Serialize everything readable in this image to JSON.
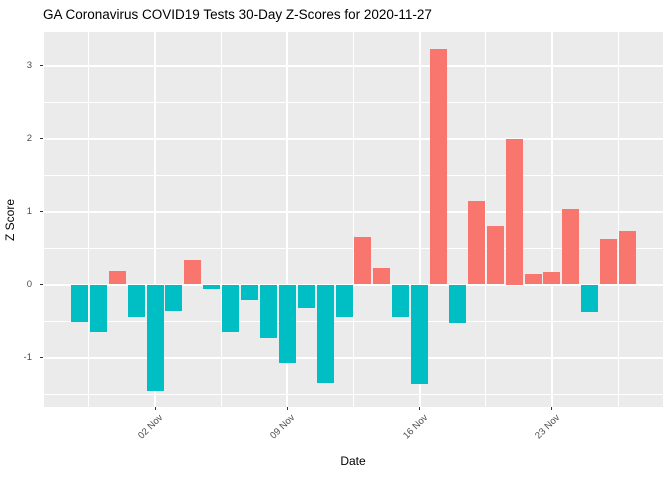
{
  "title": "GA Coronavirus COVID19 Tests 30-Day Z-Scores for 2020-11-27",
  "chart_data": {
    "type": "bar",
    "title": "GA Coronavirus COVID19 Tests 30-Day Z-Scores for 2020-11-27",
    "xlabel": "Date",
    "ylabel": "Z Score",
    "legend": "none",
    "grid": "major and minor white gridlines on gray panel",
    "ylim": [
      -1.67,
      3.46
    ],
    "y_ticks": [
      -1,
      0,
      1,
      2,
      3
    ],
    "y_minor_ticks": [
      -1.5,
      -0.5,
      0.5,
      1.5,
      2.5
    ],
    "x_ticks": [
      {
        "label": "02 Nov",
        "index": 4
      },
      {
        "label": "09 Nov",
        "index": 11
      },
      {
        "label": "16 Nov",
        "index": 18
      },
      {
        "label": "23 Nov",
        "index": 25
      }
    ],
    "x_minor_indices": [
      0.5,
      7.5,
      14.5,
      21.5,
      28.5
    ],
    "dates": [
      "2020-10-29",
      "2020-10-30",
      "2020-10-31",
      "2020-11-01",
      "2020-11-02",
      "2020-11-03",
      "2020-11-04",
      "2020-11-05",
      "2020-11-06",
      "2020-11-07",
      "2020-11-08",
      "2020-11-09",
      "2020-11-10",
      "2020-11-11",
      "2020-11-12",
      "2020-11-13",
      "2020-11-14",
      "2020-11-15",
      "2020-11-16",
      "2020-11-17",
      "2020-11-18",
      "2020-11-19",
      "2020-11-20",
      "2020-11-21",
      "2020-11-22",
      "2020-11-23",
      "2020-11-24",
      "2020-11-25",
      "2020-11-26",
      "2020-11-27"
    ],
    "values": [
      -0.51,
      -0.65,
      0.18,
      -0.45,
      -1.46,
      -0.36,
      0.34,
      -0.06,
      -0.65,
      -0.21,
      -0.73,
      -1.07,
      -0.32,
      -1.35,
      -0.45,
      0.65,
      0.23,
      -0.45,
      -1.36,
      3.23,
      -0.53,
      1.15,
      0.8,
      2.0,
      0.15,
      0.17,
      1.04,
      -0.38,
      0.62,
      0.73
    ],
    "colors": {
      "positive_bar": "#F8766D",
      "negative_bar": "#00BFC4",
      "panel_background": "#EBEBEB",
      "grid": "#FFFFFF",
      "axis_text": "#4D4D4D",
      "axis_title": "#000000",
      "tick_mark": "#333333"
    }
  }
}
